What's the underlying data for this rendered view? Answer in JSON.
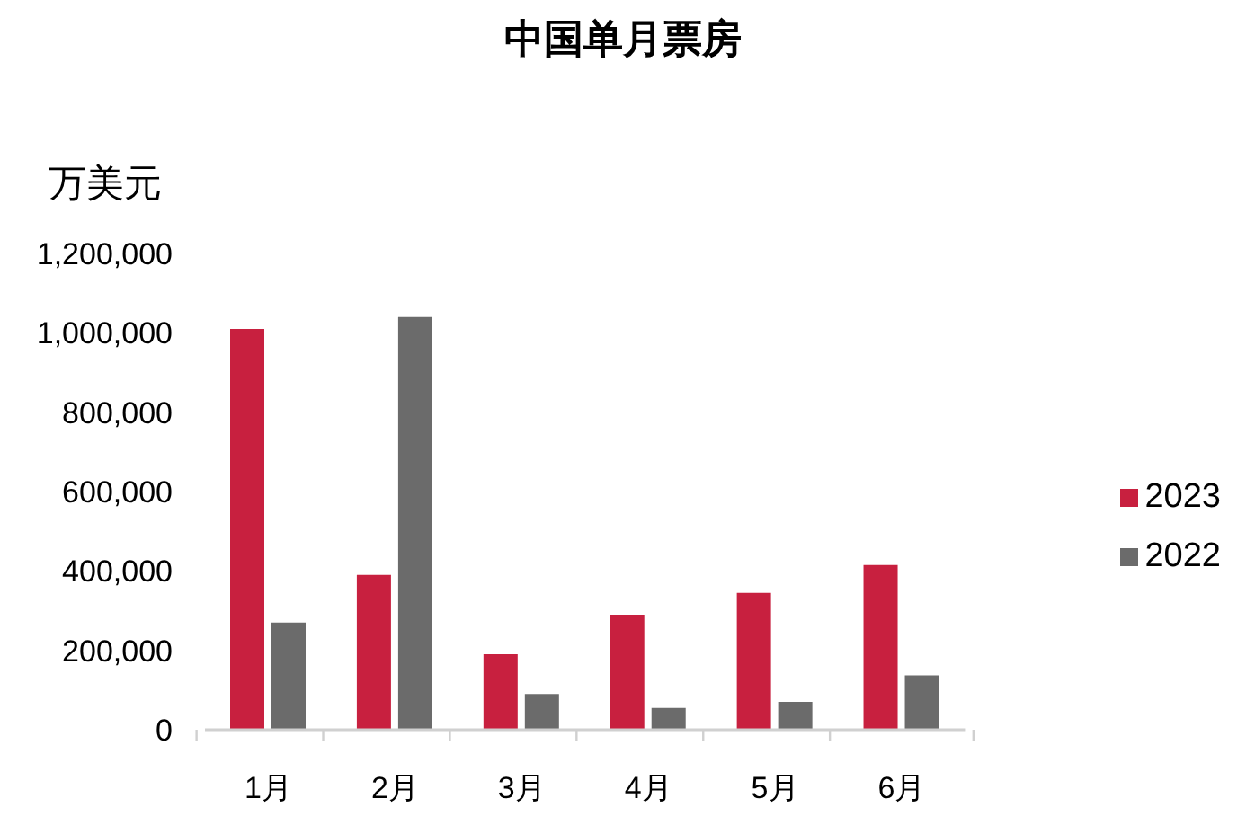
{
  "chart_data": {
    "type": "bar",
    "title": "中国单月票房",
    "ylabel": "万美元",
    "categories": [
      "1月",
      "2月",
      "3月",
      "4月",
      "5月",
      "6月"
    ],
    "series": [
      {
        "name": "2023",
        "color": "#c8203f",
        "values": [
          1010000,
          390000,
          190000,
          290000,
          345000,
          415000
        ]
      },
      {
        "name": "2022",
        "color": "#6b6b6b",
        "values": [
          270000,
          1040000,
          90000,
          55000,
          70000,
          137000
        ]
      }
    ],
    "ylim": [
      0,
      1200000
    ],
    "yticks": [
      0,
      {
        "value": 200000,
        "label": "200,000"
      },
      {
        "value": 400000,
        "label": "400,000"
      },
      {
        "value": 600000,
        "label": "600,000"
      },
      {
        "value": 800000,
        "label": "800,000"
      },
      {
        "value": 1000000,
        "label": "1,000,000"
      },
      {
        "value": 1200000,
        "label": "1,200,000"
      }
    ],
    "legend": "right"
  }
}
